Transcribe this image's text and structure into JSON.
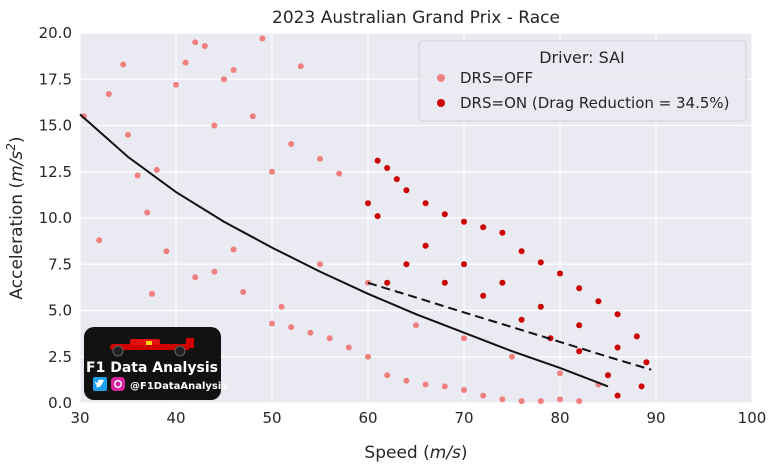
{
  "chart_data": {
    "type": "scatter",
    "title": "2023 Australian Grand Prix - Race",
    "xlabel": "Speed",
    "xlabel_unit": "m/s",
    "ylabel": "Acceleration",
    "ylabel_unit": "m/s",
    "ylabel_unit_exp": "2",
    "xlim": [
      30,
      100
    ],
    "ylim": [
      0,
      20
    ],
    "xticks": [
      "30",
      "40",
      "50",
      "60",
      "70",
      "80",
      "90",
      "100"
    ],
    "yticks": [
      "0.0",
      "2.5",
      "5.0",
      "7.5",
      "10.0",
      "12.5",
      "15.0",
      "17.5",
      "20.0"
    ],
    "grid": true,
    "legend": {
      "title": "Driver: SAI",
      "placement": "top-right",
      "entries": [
        "DRS=OFF",
        "DRS=ON (Drag Reduction = 34.5%)"
      ]
    },
    "series": [
      {
        "name": "DRS=OFF",
        "color": "#f08080",
        "points": [
          [
            30.4,
            15.5
          ],
          [
            32,
            8.8
          ],
          [
            33,
            16.7
          ],
          [
            34.5,
            18.3
          ],
          [
            35,
            14.5
          ],
          [
            36,
            12.3
          ],
          [
            37,
            10.3
          ],
          [
            38,
            12.6
          ],
          [
            40,
            17.2
          ],
          [
            41,
            18.4
          ],
          [
            42,
            19.5
          ],
          [
            43,
            19.3
          ],
          [
            44,
            15
          ],
          [
            45,
            17.5
          ],
          [
            46,
            18
          ],
          [
            48,
            15.5
          ],
          [
            49,
            19.7
          ],
          [
            50,
            12.5
          ],
          [
            52,
            14
          ],
          [
            53,
            18.2
          ],
          [
            55,
            13.2
          ],
          [
            57,
            12.4
          ],
          [
            37.5,
            5.9
          ],
          [
            39,
            8.2
          ],
          [
            42,
            6.8
          ],
          [
            44,
            7.1
          ],
          [
            46,
            8.3
          ],
          [
            47,
            6
          ],
          [
            50,
            4.3
          ],
          [
            51,
            5.2
          ],
          [
            52,
            4.1
          ],
          [
            54,
            3.8
          ],
          [
            56,
            3.5
          ],
          [
            58,
            3
          ],
          [
            60,
            2.5
          ],
          [
            62,
            1.5
          ],
          [
            64,
            1.2
          ],
          [
            66,
            1
          ],
          [
            68,
            0.9
          ],
          [
            70,
            0.7
          ],
          [
            72,
            0.4
          ],
          [
            74,
            0.2
          ],
          [
            76,
            0.1
          ],
          [
            78,
            0.1
          ],
          [
            80,
            0.2
          ],
          [
            82,
            0.1
          ],
          [
            55,
            7.5
          ],
          [
            60,
            6.5
          ],
          [
            65,
            4.2
          ],
          [
            70,
            3.5
          ],
          [
            75,
            2.5
          ],
          [
            80,
            1.6
          ],
          [
            84,
            1
          ]
        ],
        "trend": [
          [
            30,
            15.6
          ],
          [
            35,
            13.3
          ],
          [
            40,
            11.4
          ],
          [
            45,
            9.8
          ],
          [
            50,
            8.4
          ],
          [
            55,
            7.1
          ],
          [
            60,
            5.9
          ],
          [
            65,
            4.8
          ],
          [
            70,
            3.8
          ],
          [
            75,
            2.8
          ],
          [
            80,
            1.9
          ],
          [
            85,
            0.9
          ]
        ]
      },
      {
        "name": "DRS=ON (Drag Reduction = 34.5%)",
        "color": "#cc0000",
        "points": [
          [
            61,
            13.1
          ],
          [
            62,
            12.7
          ],
          [
            63,
            12.1
          ],
          [
            60,
            10.8
          ],
          [
            61,
            10.1
          ],
          [
            64,
            11.5
          ],
          [
            66,
            10.8
          ],
          [
            68,
            10.2
          ],
          [
            70,
            9.8
          ],
          [
            72,
            9.5
          ],
          [
            74,
            9.2
          ],
          [
            76,
            8.2
          ],
          [
            78,
            7.6
          ],
          [
            80,
            7
          ],
          [
            82,
            6.2
          ],
          [
            84,
            5.5
          ],
          [
            86,
            4.8
          ],
          [
            88,
            3.6
          ],
          [
            89,
            2.2
          ],
          [
            88.5,
            0.9
          ],
          [
            86,
            0.4
          ],
          [
            85,
            1.5
          ],
          [
            82,
            2.8
          ],
          [
            79,
            3.5
          ],
          [
            76,
            4.5
          ],
          [
            72,
            5.8
          ],
          [
            68,
            6.5
          ],
          [
            64,
            7.5
          ],
          [
            62,
            6.5
          ],
          [
            66,
            8.5
          ],
          [
            70,
            7.5
          ],
          [
            74,
            6.5
          ],
          [
            78,
            5.2
          ],
          [
            82,
            4.2
          ],
          [
            86,
            3
          ]
        ],
        "trend": [
          [
            60,
            6.5
          ],
          [
            65,
            5.7
          ],
          [
            70,
            4.9
          ],
          [
            75,
            4.1
          ],
          [
            80,
            3.3
          ],
          [
            85,
            2.5
          ],
          [
            89.5,
            1.8
          ]
        ]
      }
    ]
  },
  "watermark": {
    "logo_title": "F1 Data Analysis",
    "handle": "@F1DataAnalysis",
    "twitter_icon": "twitter-icon",
    "instagram_icon": "instagram-icon",
    "twitter_color": "#1da1f2",
    "instagram_color": "#d6249f"
  }
}
